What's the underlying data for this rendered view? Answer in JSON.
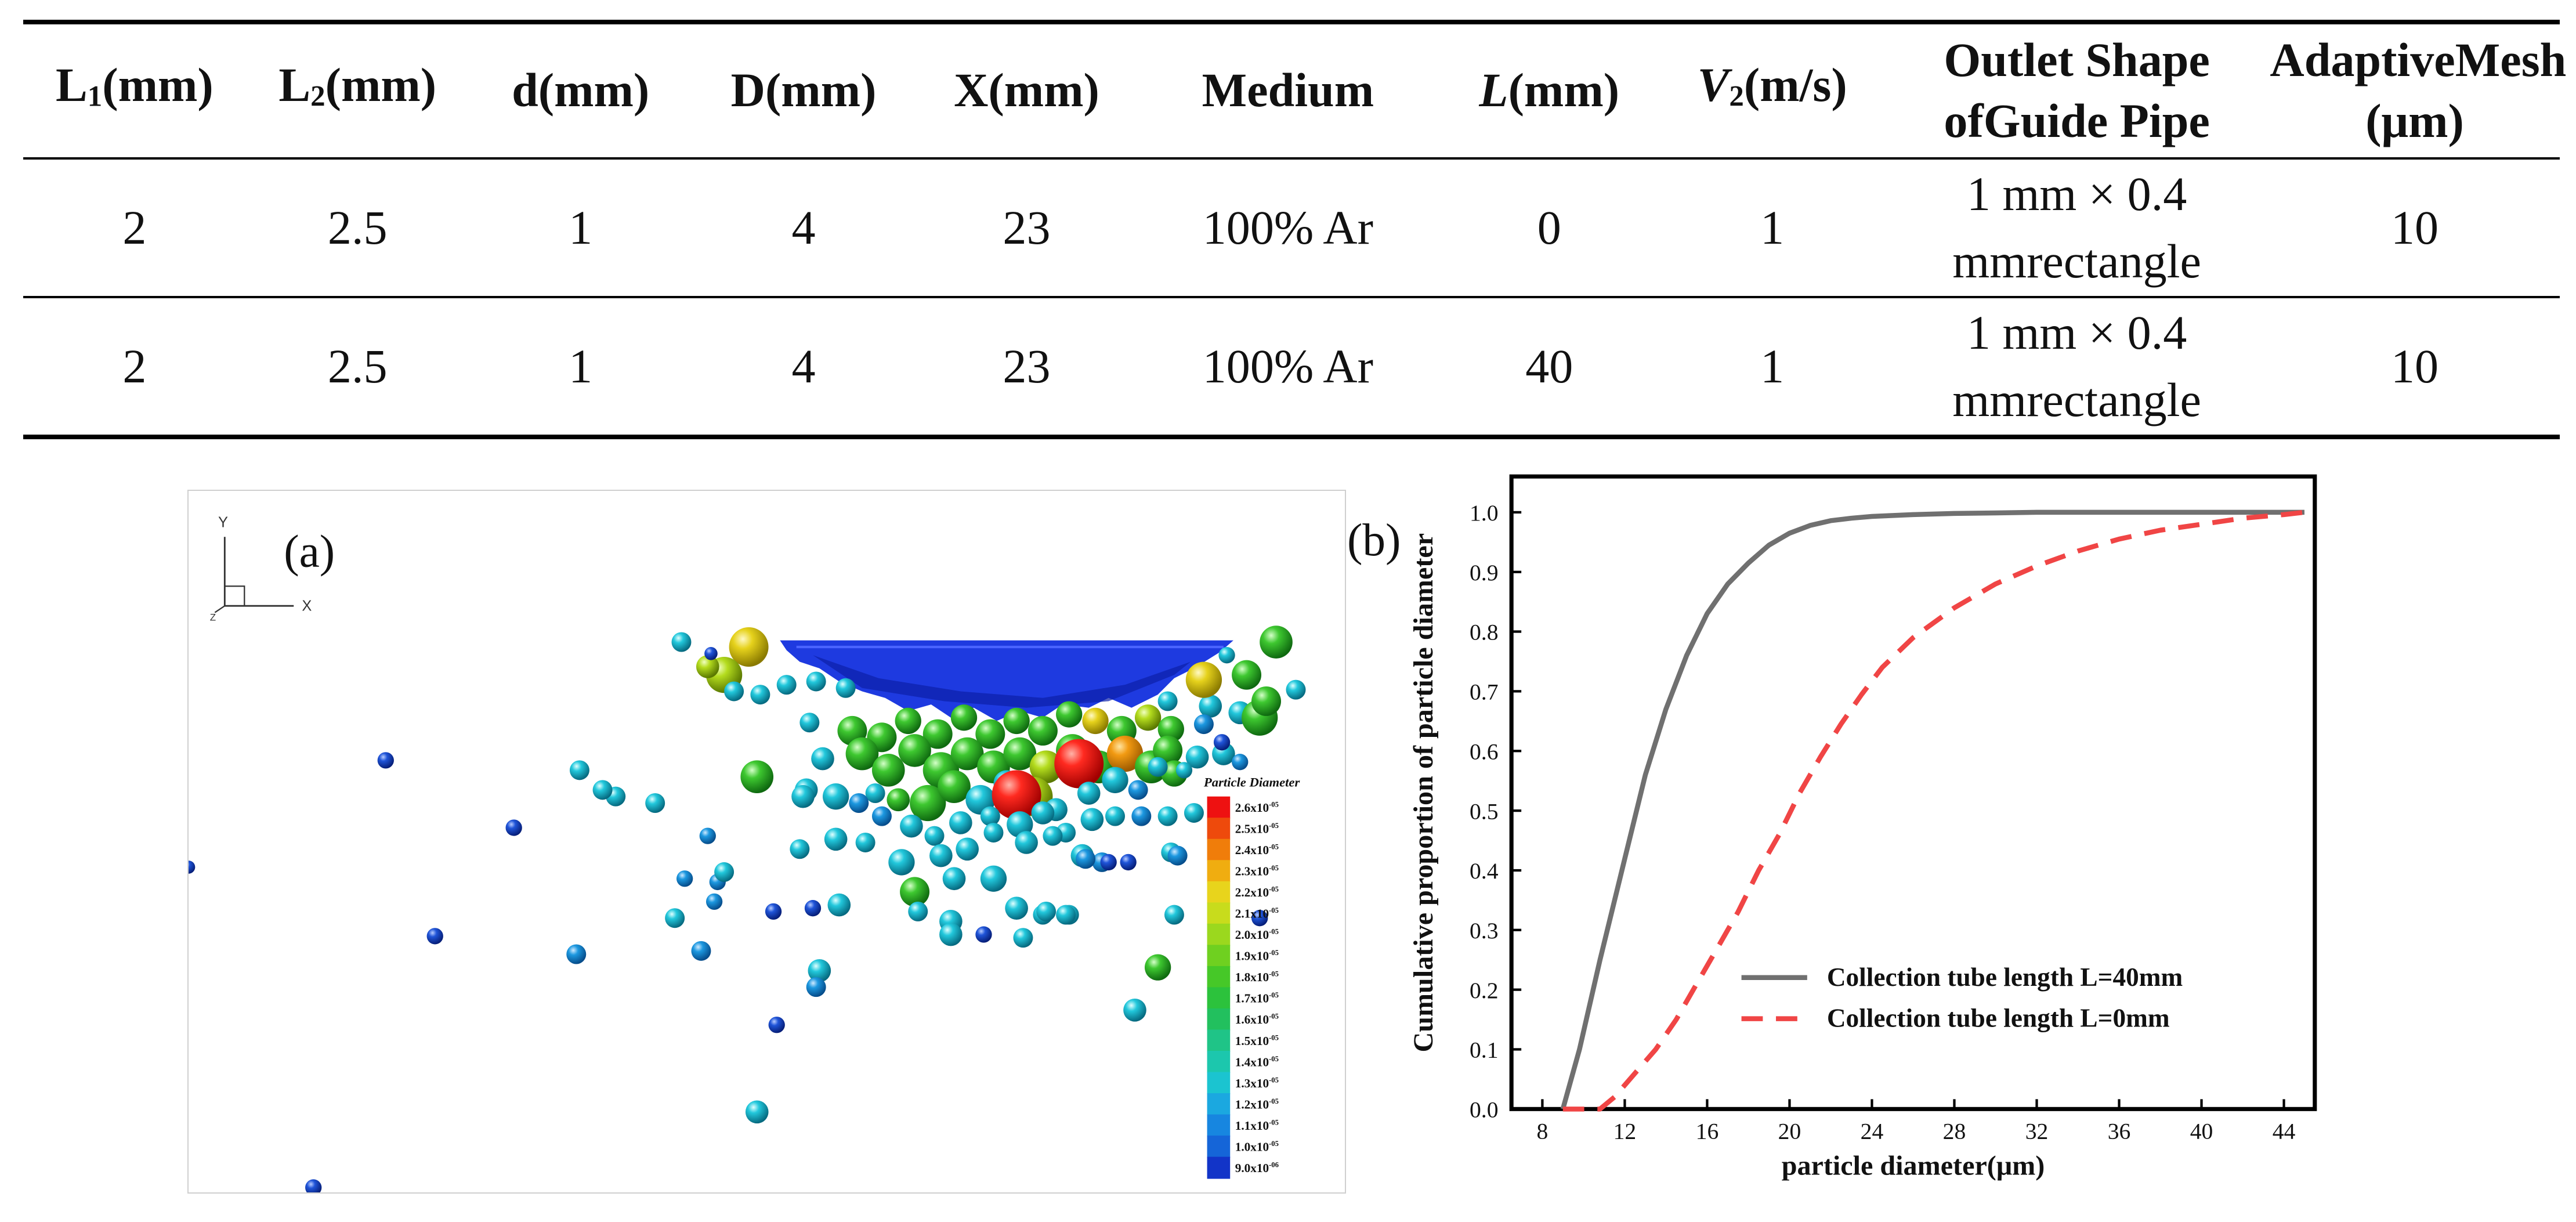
{
  "table": {
    "headers": [
      {
        "line1": "L",
        "sub": "1",
        "line2": "(mm)"
      },
      {
        "line1": "L",
        "sub": "2",
        "line2": "(mm)"
      },
      {
        "line1": "d",
        "sub": "",
        "line2": "(mm)"
      },
      {
        "line1": "D",
        "sub": "",
        "line2": "(mm)"
      },
      {
        "line1": "X",
        "sub": "",
        "line2": "(mm)"
      },
      {
        "line1": "Medium",
        "sub": "",
        "line2": ""
      },
      {
        "line1": "L",
        "sub": "",
        "line2": "(mm)"
      },
      {
        "line1": "V",
        "sub": "2",
        "line2": "(m/s)"
      },
      {
        "line1": "Outlet Shape of",
        "sub": "",
        "line2": "Guide Pipe"
      },
      {
        "line1": "Adaptive",
        "sub": "",
        "line2": "Mesh (μm)"
      }
    ],
    "rows": [
      {
        "L1": "2",
        "L2": "2.5",
        "d": "1",
        "D": "4",
        "X": "23",
        "medium": "100% Ar",
        "L": "0",
        "V2": "1",
        "outlet_line1": "1 mm × 0.4 mm",
        "outlet_line2": "rectangle",
        "mesh": "10"
      },
      {
        "L1": "2",
        "L2": "2.5",
        "d": "1",
        "D": "4",
        "X": "23",
        "medium": "100% Ar",
        "L": "40",
        "V2": "1",
        "outlet_line1": "1 mm × 0.4 mm",
        "outlet_line2": "rectangle",
        "mesh": "10"
      }
    ]
  },
  "figure_a": {
    "label": "(a)",
    "axis_y": "Y",
    "axis_x": "X",
    "axis_z": "Z",
    "colorbar_title": "Particle Diameter",
    "colorbar_labels": [
      "2.6x10",
      "2.5x10",
      "2.4x10",
      "2.3x10",
      "2.2x10",
      "2.1x10",
      "2.0x10",
      "1.9x10",
      "1.8x10",
      "1.7x10",
      "1.6x10",
      "1.5x10",
      "1.4x10",
      "1.3x10",
      "1.2x10",
      "1.1x10",
      "1.0x10",
      "9.0x10"
    ],
    "colorbar_exponents": [
      "-05",
      "-05",
      "-05",
      "-05",
      "-05",
      "-05",
      "-05",
      "-05",
      "-05",
      "-05",
      "-05",
      "-05",
      "-05",
      "-05",
      "-05",
      "-05",
      "-05",
      "-06"
    ],
    "colorbar_colors": [
      "#ee1111",
      "#ee4a0c",
      "#f07d0a",
      "#f0ad10",
      "#e8d41c",
      "#c8dc1c",
      "#9bd81e",
      "#6fd020",
      "#46c828",
      "#2cc23c",
      "#22c05e",
      "#1fc487",
      "#1cc7ad",
      "#1bc4d0",
      "#1ba8e0",
      "#1786e0",
      "#1565d8",
      "#1234c8"
    ]
  },
  "chart_data": {
    "type": "line",
    "label": "(b)",
    "xlabel": "particle diameter(μm)",
    "ylabel": "Cumulative proportion of particle diameter",
    "xlim": [
      6.5,
      45.5
    ],
    "ylim": [
      0.0,
      1.06
    ],
    "xticks": [
      8,
      12,
      16,
      20,
      24,
      28,
      32,
      36,
      40,
      44
    ],
    "yticks": [
      0.0,
      0.1,
      0.2,
      0.3,
      0.4,
      0.5,
      0.6,
      0.7,
      0.8,
      0.9,
      1.0
    ],
    "grid": false,
    "legend_position": "lower-right",
    "series": [
      {
        "name": "Collection tube length L=40mm",
        "color": "#707070",
        "style": "solid",
        "x": [
          9.0,
          9.8,
          10.8,
          12.0,
          13.0,
          14.0,
          15.0,
          16.0,
          17.0,
          18.0,
          19.0,
          20.0,
          21.0,
          22.0,
          23.0,
          24.0,
          26.0,
          28.0,
          30.0,
          32.0,
          36.0,
          40.0,
          44.0,
          45.0
        ],
        "y": [
          0.0,
          0.1,
          0.25,
          0.42,
          0.56,
          0.67,
          0.76,
          0.83,
          0.88,
          0.915,
          0.945,
          0.965,
          0.978,
          0.986,
          0.99,
          0.993,
          0.996,
          0.998,
          0.999,
          1.0,
          1.0,
          1.0,
          1.0,
          1.0
        ]
      },
      {
        "name": "Collection tube length L=0mm",
        "color": "#f04545",
        "style": "dashed",
        "x": [
          9.0,
          10.8,
          11.5,
          12.5,
          13.5,
          14.5,
          15.5,
          16.5,
          17.5,
          18.5,
          19.5,
          20.5,
          21.5,
          22.5,
          23.5,
          24.5,
          26.0,
          28.0,
          30.0,
          32.0,
          34.0,
          36.0,
          38.0,
          40.0,
          42.0,
          44.0,
          45.0
        ],
        "y": [
          0.0,
          0.0,
          0.02,
          0.06,
          0.1,
          0.15,
          0.21,
          0.27,
          0.33,
          0.4,
          0.46,
          0.53,
          0.59,
          0.645,
          0.695,
          0.74,
          0.79,
          0.84,
          0.88,
          0.91,
          0.935,
          0.955,
          0.97,
          0.98,
          0.99,
          0.996,
          1.0
        ]
      }
    ]
  }
}
